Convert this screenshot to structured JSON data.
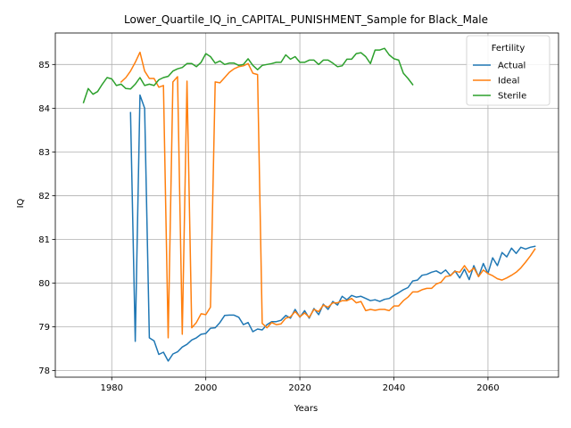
{
  "chart_data": {
    "type": "line",
    "title": "Lower_Quartile_IQ_in_CAPITAL_PUNISHMENT_Sample for Black_Male",
    "xlabel": "Years",
    "ylabel": "IQ",
    "xlim": [
      1968,
      2075
    ],
    "ylim": [
      77.85,
      85.72
    ],
    "xticks": [
      1980,
      2000,
      2020,
      2040,
      2060
    ],
    "yticks": [
      78,
      79,
      80,
      81,
      82,
      83,
      84,
      85
    ],
    "grid": true,
    "legend": {
      "title": "Fertility",
      "placement": "top-right"
    },
    "series": [
      {
        "name": "Actual",
        "color": "#1f77b4",
        "x": [
          1984,
          1985,
          1986,
          1987,
          1988,
          1989,
          1990,
          1991,
          1992,
          1993,
          1994,
          1995,
          1996,
          1997,
          1998,
          1999,
          2000,
          2001,
          2002,
          2003,
          2004,
          2005,
          2006,
          2007,
          2008,
          2009,
          2010,
          2011,
          2012,
          2013,
          2014,
          2015,
          2016,
          2017,
          2018,
          2019,
          2020,
          2021,
          2022,
          2023,
          2024,
          2025,
          2026,
          2027,
          2028,
          2029,
          2030,
          2031,
          2032,
          2033,
          2034,
          2035,
          2036,
          2037,
          2038,
          2039,
          2040,
          2041,
          2042,
          2043,
          2044,
          2045,
          2046,
          2047,
          2048,
          2049,
          2050,
          2051,
          2052,
          2053,
          2054,
          2055,
          2056,
          2057,
          2058,
          2059,
          2060,
          2061,
          2062,
          2063,
          2064,
          2065,
          2066,
          2067,
          2068,
          2069,
          2070
        ],
        "y": [
          83.9,
          78.67,
          84.3,
          84.0,
          78.75,
          78.68,
          78.37,
          78.42,
          78.22,
          78.38,
          78.43,
          78.54,
          78.6,
          78.7,
          78.75,
          78.83,
          78.85,
          78.97,
          78.98,
          79.1,
          79.26,
          79.27,
          79.27,
          79.22,
          79.05,
          79.1,
          78.89,
          78.95,
          78.93,
          79.05,
          79.12,
          79.12,
          79.15,
          79.26,
          79.2,
          79.4,
          79.22,
          79.37,
          79.2,
          79.42,
          79.28,
          79.52,
          79.4,
          79.58,
          79.5,
          79.7,
          79.62,
          79.72,
          79.68,
          79.7,
          79.65,
          79.6,
          79.62,
          79.58,
          79.63,
          79.65,
          79.72,
          79.78,
          79.85,
          79.9,
          80.05,
          80.07,
          80.18,
          80.2,
          80.25,
          80.28,
          80.22,
          80.3,
          80.17,
          80.28,
          80.12,
          80.32,
          80.08,
          80.4,
          80.15,
          80.45,
          80.22,
          80.58,
          80.4,
          80.7,
          80.6,
          80.8,
          80.68,
          80.82,
          80.78,
          80.82,
          80.84
        ]
      },
      {
        "name": "Ideal",
        "color": "#ff7f0e",
        "x": [
          1982,
          1983,
          1984,
          1985,
          1986,
          1987,
          1988,
          1989,
          1990,
          1991,
          1992,
          1993,
          1994,
          1995,
          1996,
          1997,
          1998,
          1999,
          2000,
          2001,
          2002,
          2003,
          2004,
          2005,
          2006,
          2007,
          2008,
          2009,
          2010,
          2011,
          2012,
          2013,
          2014,
          2015,
          2016,
          2017,
          2018,
          2019,
          2020,
          2021,
          2022,
          2023,
          2024,
          2025,
          2026,
          2027,
          2028,
          2029,
          2030,
          2031,
          2032,
          2033,
          2034,
          2035,
          2036,
          2037,
          2038,
          2039,
          2040,
          2041,
          2042,
          2043,
          2044,
          2045,
          2046,
          2047,
          2048,
          2049,
          2050,
          2051,
          2052,
          2053,
          2054,
          2055,
          2056,
          2057,
          2058,
          2059,
          2060,
          2061,
          2062,
          2063,
          2064,
          2065,
          2066,
          2067,
          2068,
          2069,
          2070
        ],
        "y": [
          84.6,
          84.7,
          84.85,
          85.05,
          85.28,
          84.85,
          84.68,
          84.68,
          84.48,
          84.52,
          78.75,
          84.6,
          84.72,
          78.83,
          84.62,
          78.98,
          79.1,
          79.3,
          79.28,
          79.45,
          84.6,
          84.58,
          84.7,
          84.82,
          84.9,
          84.95,
          84.97,
          85.02,
          84.8,
          84.77,
          79.08,
          78.98,
          79.1,
          79.05,
          79.07,
          79.2,
          79.23,
          79.35,
          79.23,
          79.32,
          79.22,
          79.4,
          79.35,
          79.5,
          79.45,
          79.55,
          79.55,
          79.6,
          79.6,
          79.65,
          79.55,
          79.58,
          79.37,
          79.4,
          79.38,
          79.4,
          79.4,
          79.37,
          79.48,
          79.48,
          79.6,
          79.68,
          79.8,
          79.8,
          79.85,
          79.88,
          79.88,
          79.98,
          80.02,
          80.15,
          80.17,
          80.27,
          80.25,
          80.4,
          80.25,
          80.35,
          80.15,
          80.3,
          80.22,
          80.17,
          80.1,
          80.07,
          80.12,
          80.18,
          80.25,
          80.35,
          80.48,
          80.62,
          80.78
        ]
      },
      {
        "name": "Sterile",
        "color": "#2ca02c",
        "x": [
          1974,
          1975,
          1976,
          1977,
          1978,
          1979,
          1980,
          1981,
          1982,
          1983,
          1984,
          1985,
          1986,
          1987,
          1988,
          1989,
          1990,
          1991,
          1992,
          1993,
          1994,
          1995,
          1996,
          1997,
          1998,
          1999,
          2000,
          2001,
          2002,
          2003,
          2004,
          2005,
          2006,
          2007,
          2008,
          2009,
          2010,
          2011,
          2012,
          2013,
          2014,
          2015,
          2016,
          2017,
          2018,
          2019,
          2020,
          2021,
          2022,
          2023,
          2024,
          2025,
          2026,
          2027,
          2028,
          2029,
          2030,
          2031,
          2032,
          2033,
          2034,
          2035,
          2036,
          2037,
          2038,
          2039,
          2040,
          2041,
          2042,
          2043,
          2044
        ],
        "y": [
          84.13,
          84.45,
          84.32,
          84.38,
          84.55,
          84.7,
          84.67,
          84.52,
          84.55,
          84.45,
          84.44,
          84.55,
          84.7,
          84.52,
          84.55,
          84.52,
          84.65,
          84.7,
          84.73,
          84.85,
          84.9,
          84.93,
          85.02,
          85.02,
          84.95,
          85.05,
          85.25,
          85.18,
          85.03,
          85.08,
          85.0,
          85.03,
          85.03,
          84.98,
          85.0,
          85.13,
          84.98,
          84.88,
          84.98,
          85.0,
          85.02,
          85.05,
          85.05,
          85.22,
          85.12,
          85.18,
          85.05,
          85.05,
          85.1,
          85.1,
          85.0,
          85.1,
          85.1,
          85.03,
          84.95,
          84.97,
          85.12,
          85.12,
          85.25,
          85.27,
          85.18,
          85.02,
          85.33,
          85.33,
          85.37,
          85.22,
          85.13,
          85.1,
          84.8,
          84.68,
          84.54
        ]
      }
    ]
  }
}
